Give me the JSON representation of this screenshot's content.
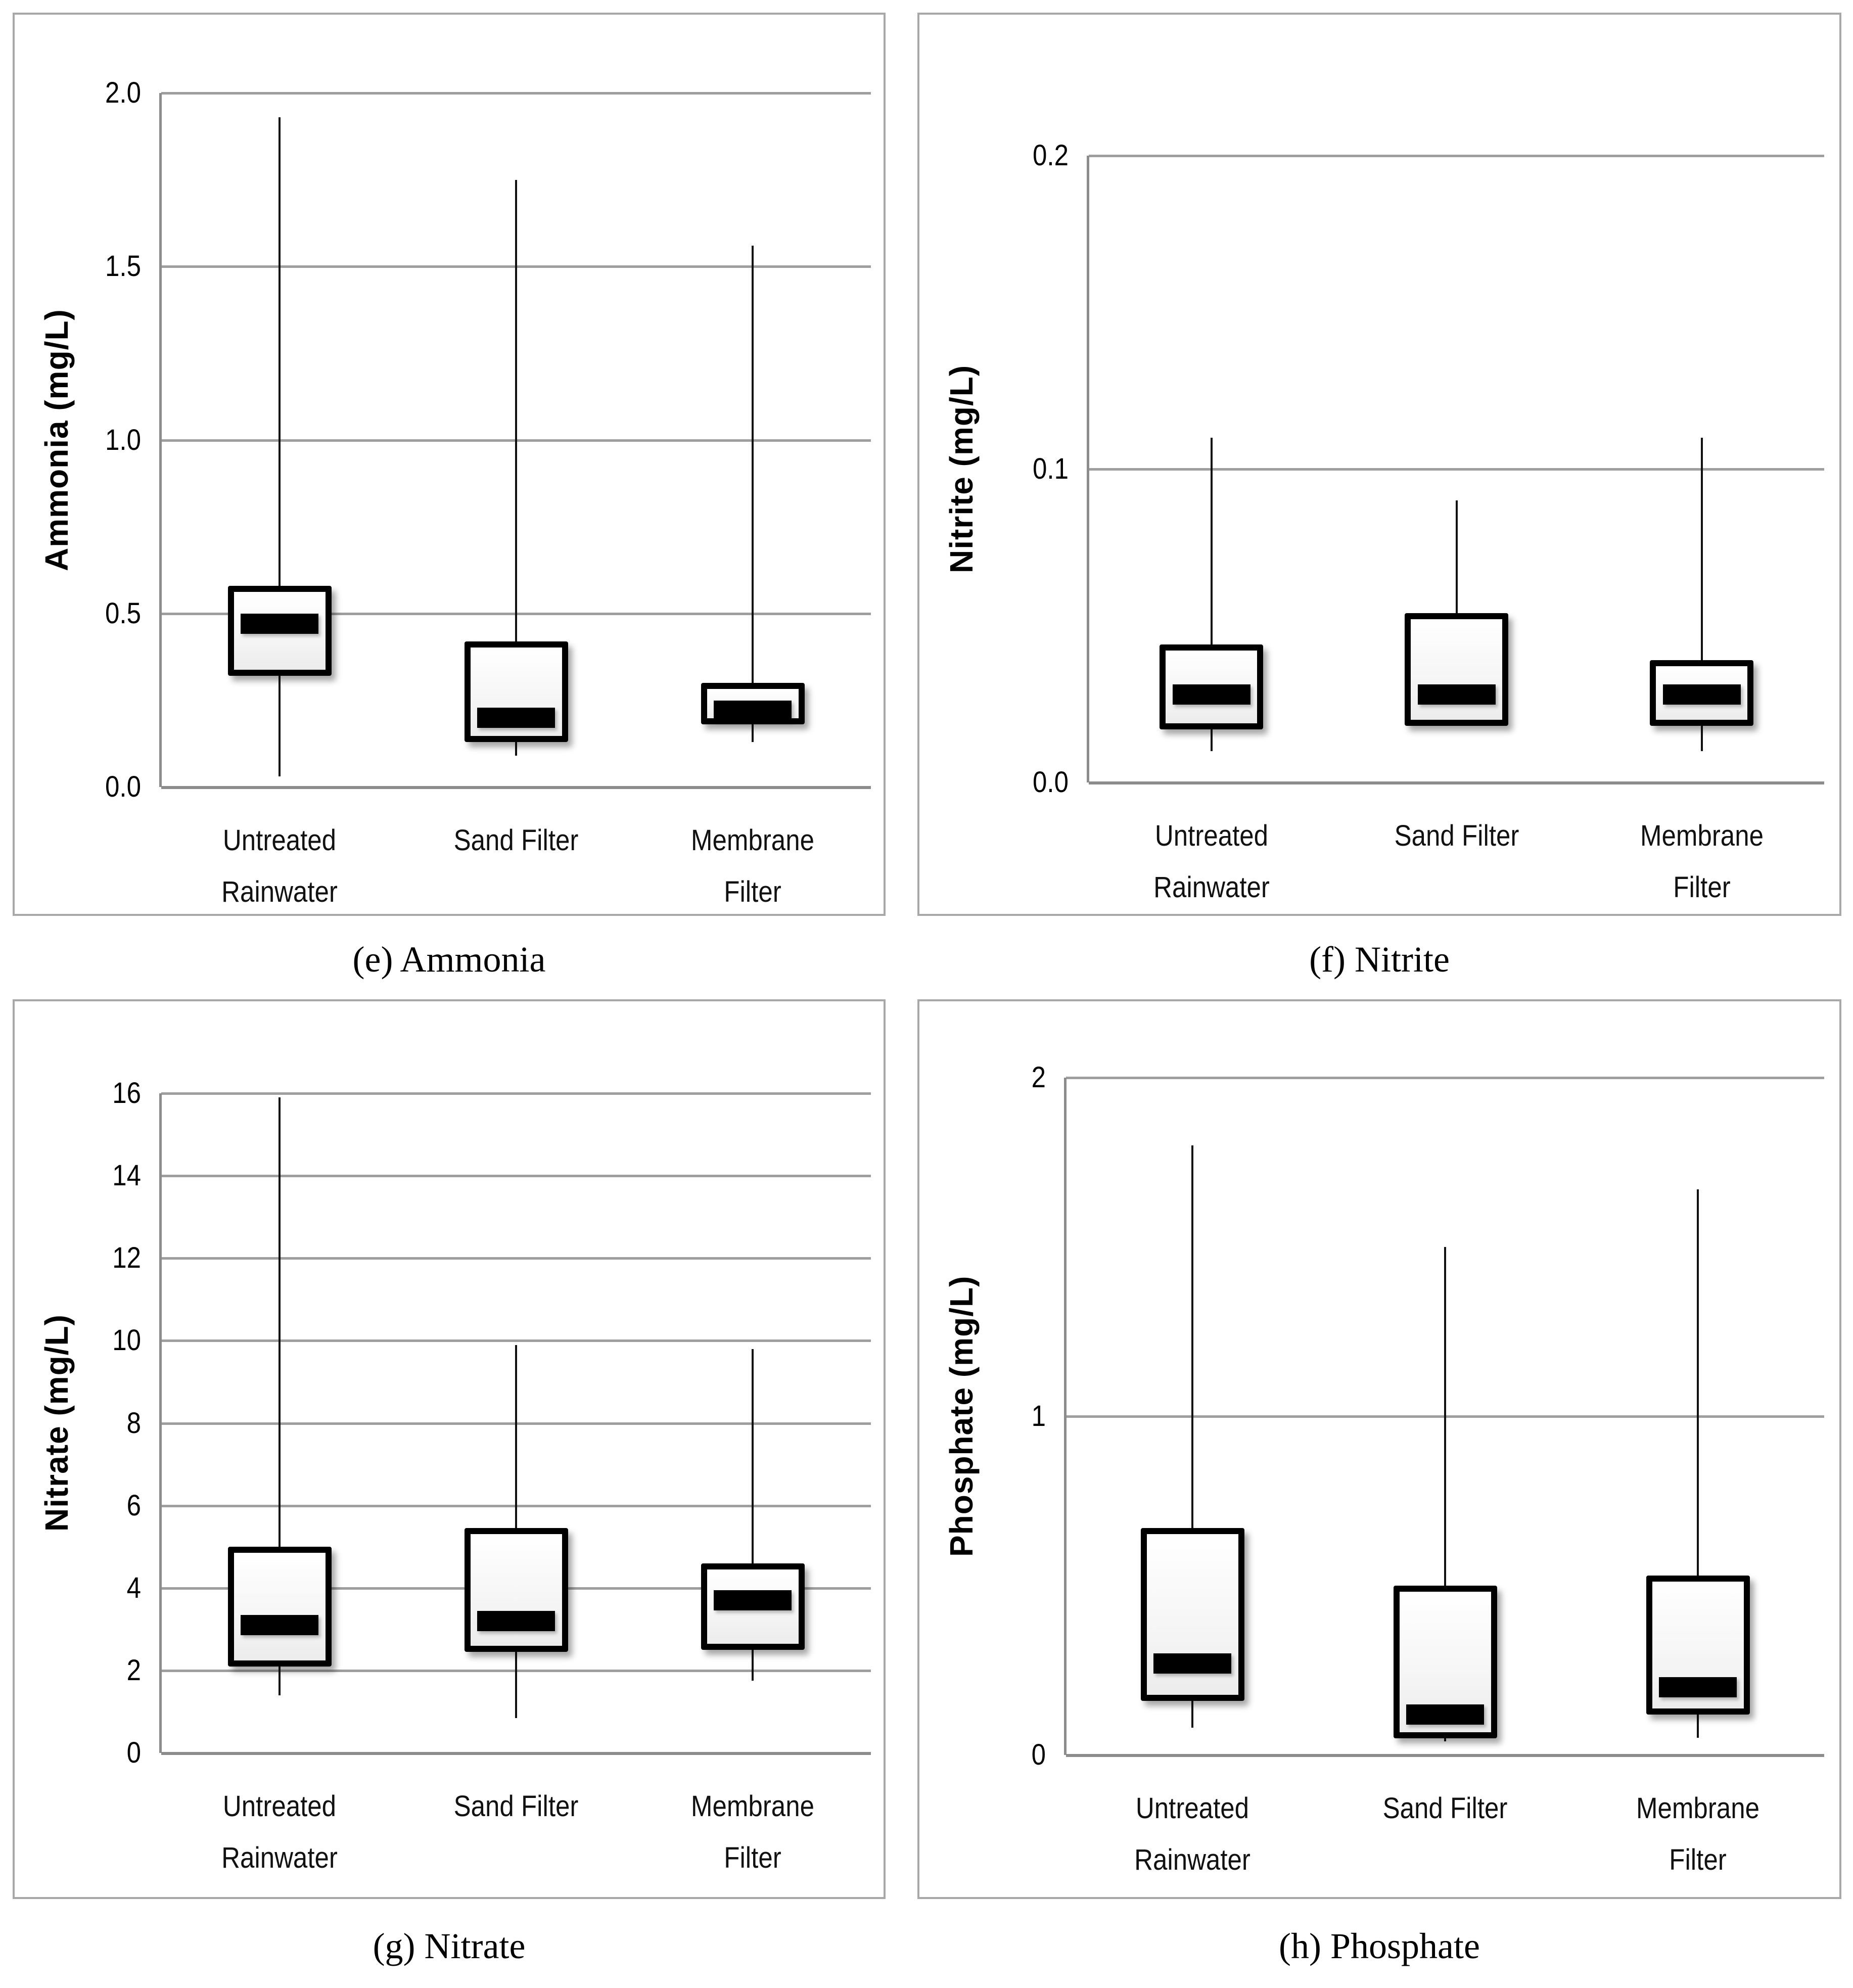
{
  "figure": {
    "background": "#ffffff",
    "grid_color": "#9e9e9e",
    "axis_color": "#8c8c8c",
    "panel_border_color": "#a8a8a8",
    "box_border_color": "#000000",
    "median_color": "#000000",
    "text_color": "#000000"
  },
  "chart_data": [
    {
      "type": "box",
      "caption": "(e) Ammonia",
      "ylabel": "Ammonia (mg/L)",
      "ylim": [
        0,
        2.0
      ],
      "grid": true,
      "yticks": [
        {
          "label": "2.0",
          "value": 2.0
        },
        {
          "label": "1.5",
          "value": 1.5
        },
        {
          "label": "1.0",
          "value": 1.0
        },
        {
          "label": "0.5",
          "value": 0.5
        },
        {
          "label": "0.0",
          "value": 0.0
        }
      ],
      "categories": [
        "Untreated\nRainwater",
        "Sand Filter",
        "Membrane\nFilter"
      ],
      "boxes": [
        {
          "category": "Untreated Rainwater",
          "low": 0.03,
          "q1": 0.32,
          "median": 0.47,
          "q3": 0.58,
          "high": 1.93
        },
        {
          "category": "Sand Filter",
          "low": 0.09,
          "q1": 0.13,
          "median": 0.2,
          "q3": 0.42,
          "high": 1.75
        },
        {
          "category": "Membrane Filter",
          "low": 0.13,
          "q1": 0.18,
          "median": 0.22,
          "q3": 0.3,
          "high": 1.56
        }
      ],
      "layout": {
        "grid_top": 155,
        "grid_bottom": 1528,
        "axis_left": 290,
        "right_margin": 25
      }
    },
    {
      "type": "box",
      "caption": "(f) Nitrite",
      "ylabel": "Nitrite (mg/L)",
      "ylim": [
        0,
        0.2
      ],
      "grid": true,
      "yticks": [
        {
          "label": "0.2",
          "value": 0.2
        },
        {
          "label": "0.1",
          "value": 0.1
        },
        {
          "label": "0.0",
          "value": 0.0
        }
      ],
      "categories": [
        "Untreated\nRainwater",
        "Sand Filter",
        "Membrane\nFilter"
      ],
      "boxes": [
        {
          "category": "Untreated Rainwater",
          "low": 0.01,
          "q1": 0.017,
          "median": 0.028,
          "q3": 0.044,
          "high": 0.11
        },
        {
          "category": "Sand Filter",
          "low": 0.018,
          "q1": 0.018,
          "median": 0.028,
          "q3": 0.054,
          "high": 0.09
        },
        {
          "category": "Membrane Filter",
          "low": 0.01,
          "q1": 0.018,
          "median": 0.028,
          "q3": 0.039,
          "high": 0.11
        }
      ],
      "layout": {
        "grid_top": 279,
        "grid_bottom": 1519,
        "axis_left": 335,
        "right_margin": 30
      }
    },
    {
      "type": "box",
      "caption": "(g) Nitrate",
      "ylabel": "Nitrate (mg/L)",
      "ylim": [
        0,
        16
      ],
      "grid": true,
      "yticks": [
        {
          "label": "16",
          "value": 16
        },
        {
          "label": "14",
          "value": 14
        },
        {
          "label": "12",
          "value": 12
        },
        {
          "label": "10",
          "value": 10
        },
        {
          "label": "8",
          "value": 8
        },
        {
          "label": "6",
          "value": 6
        },
        {
          "label": "4",
          "value": 4
        },
        {
          "label": "2",
          "value": 2
        },
        {
          "label": "0",
          "value": 0
        }
      ],
      "categories": [
        "Untreated\nRainwater",
        "Sand Filter",
        "Membrane\nFilter"
      ],
      "boxes": [
        {
          "category": "Untreated Rainwater",
          "low": 1.4,
          "q1": 2.1,
          "median": 3.1,
          "q3": 5.0,
          "high": 15.9
        },
        {
          "category": "Sand Filter",
          "low": 0.85,
          "q1": 2.45,
          "median": 3.2,
          "q3": 5.45,
          "high": 9.9
        },
        {
          "category": "Membrane Filter",
          "low": 1.75,
          "q1": 2.5,
          "median": 3.7,
          "q3": 4.6,
          "high": 9.8
        }
      ],
      "layout": {
        "grid_top": 182,
        "grid_bottom": 1487,
        "axis_left": 290,
        "right_margin": 25
      }
    },
    {
      "type": "box",
      "caption": "(h) Phosphate",
      "ylabel": "Phosphate (mg/L)",
      "ylim": [
        0,
        2
      ],
      "grid": true,
      "yticks": [
        {
          "label": "2",
          "value": 2
        },
        {
          "label": "1",
          "value": 1
        },
        {
          "label": "0",
          "value": 0
        }
      ],
      "categories": [
        "Untreated\nRainwater",
        "Sand Filter",
        "Membrane\nFilter"
      ],
      "boxes": [
        {
          "category": "Untreated Rainwater",
          "low": 0.08,
          "q1": 0.16,
          "median": 0.27,
          "q3": 0.67,
          "high": 1.8
        },
        {
          "category": "Sand Filter",
          "low": 0.04,
          "q1": 0.05,
          "median": 0.12,
          "q3": 0.5,
          "high": 1.5
        },
        {
          "category": "Membrane Filter",
          "low": 0.05,
          "q1": 0.12,
          "median": 0.2,
          "q3": 0.53,
          "high": 1.67
        }
      ],
      "layout": {
        "grid_top": 151,
        "grid_bottom": 1491,
        "axis_left": 290,
        "right_margin": 30
      }
    }
  ]
}
